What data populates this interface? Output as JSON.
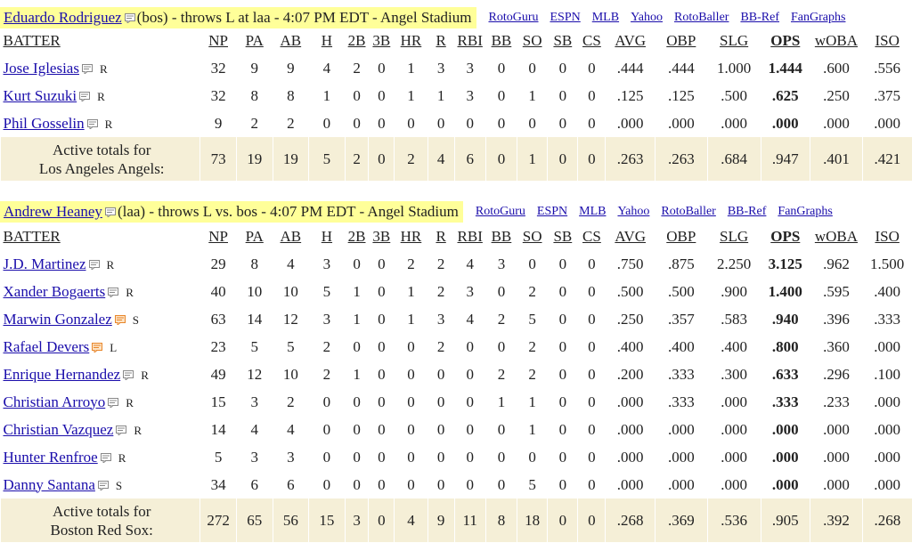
{
  "columns": [
    "BATTER",
    "NP",
    "PA",
    "AB",
    "H",
    "2B",
    "3B",
    "HR",
    "R",
    "RBI",
    "BB",
    "SO",
    "SB",
    "CS",
    "AVG",
    "OBP",
    "SLG",
    "OPS",
    "wOBA",
    "ISO"
  ],
  "links": [
    "RotoGuru",
    "ESPN",
    "MLB",
    "Yahoo",
    "RotoBaller",
    "BB-Ref",
    "FanGraphs"
  ],
  "game1": {
    "pitcher": "Eduardo Rodriguez",
    "info": "(bos) - throws L at laa - 4:07 PM EDT - Angel Stadium",
    "rows": [
      {
        "name": "Jose Iglesias",
        "hand": "R",
        "stats": [
          "32",
          "9",
          "9",
          "4",
          "2",
          "0",
          "1",
          "3",
          "3",
          "0",
          "0",
          "0",
          "0",
          ".444",
          ".444",
          "1.000",
          "1.444",
          ".600",
          ".556"
        ]
      },
      {
        "name": "Kurt Suzuki",
        "hand": "R",
        "stats": [
          "32",
          "8",
          "8",
          "1",
          "0",
          "0",
          "1",
          "1",
          "3",
          "0",
          "1",
          "0",
          "0",
          ".125",
          ".125",
          ".500",
          ".625",
          ".250",
          ".375"
        ]
      },
      {
        "name": "Phil Gosselin",
        "hand": "R",
        "stats": [
          "9",
          "2",
          "2",
          "0",
          "0",
          "0",
          "0",
          "0",
          "0",
          "0",
          "0",
          "0",
          "0",
          ".000",
          ".000",
          ".000",
          ".000",
          ".000",
          ".000"
        ]
      }
    ],
    "total_label_1": "Active totals for",
    "total_label_2": "Los Angeles Angels:",
    "totals": [
      "73",
      "19",
      "19",
      "5",
      "2",
      "0",
      "2",
      "4",
      "6",
      "0",
      "1",
      "0",
      "0",
      ".263",
      ".263",
      ".684",
      ".947",
      ".401",
      ".421"
    ]
  },
  "game2": {
    "pitcher": "Andrew Heaney",
    "info": "(laa) - throws L vs. bos - 4:07 PM EDT - Angel Stadium",
    "rows": [
      {
        "name": "J.D. Martinez",
        "hand": "R",
        "stats": [
          "29",
          "8",
          "4",
          "3",
          "0",
          "0",
          "2",
          "2",
          "4",
          "3",
          "0",
          "0",
          "0",
          ".750",
          ".875",
          "2.250",
          "3.125",
          ".962",
          "1.500"
        ]
      },
      {
        "name": "Xander Bogaerts",
        "hand": "R",
        "stats": [
          "40",
          "10",
          "10",
          "5",
          "1",
          "0",
          "1",
          "2",
          "3",
          "0",
          "2",
          "0",
          "0",
          ".500",
          ".500",
          ".900",
          "1.400",
          ".595",
          ".400"
        ]
      },
      {
        "name": "Marwin Gonzalez",
        "hand": "S",
        "stats": [
          "63",
          "14",
          "12",
          "3",
          "1",
          "0",
          "1",
          "3",
          "4",
          "2",
          "5",
          "0",
          "0",
          ".250",
          ".357",
          ".583",
          ".940",
          ".396",
          ".333"
        ]
      },
      {
        "name": "Rafael Devers",
        "hand": "L",
        "stats": [
          "23",
          "5",
          "5",
          "2",
          "0",
          "0",
          "0",
          "2",
          "0",
          "0",
          "2",
          "0",
          "0",
          ".400",
          ".400",
          ".400",
          ".800",
          ".360",
          ".000"
        ]
      },
      {
        "name": "Enrique Hernandez",
        "hand": "R",
        "stats": [
          "49",
          "12",
          "10",
          "2",
          "1",
          "0",
          "0",
          "0",
          "0",
          "2",
          "2",
          "0",
          "0",
          ".200",
          ".333",
          ".300",
          ".633",
          ".296",
          ".100"
        ]
      },
      {
        "name": "Christian Arroyo",
        "hand": "R",
        "stats": [
          "15",
          "3",
          "2",
          "0",
          "0",
          "0",
          "0",
          "0",
          "0",
          "1",
          "1",
          "0",
          "0",
          ".000",
          ".333",
          ".000",
          ".333",
          ".233",
          ".000"
        ]
      },
      {
        "name": "Christian Vazquez",
        "hand": "R",
        "stats": [
          "14",
          "4",
          "4",
          "0",
          "0",
          "0",
          "0",
          "0",
          "0",
          "0",
          "1",
          "0",
          "0",
          ".000",
          ".000",
          ".000",
          ".000",
          ".000",
          ".000"
        ]
      },
      {
        "name": "Hunter Renfroe",
        "hand": "R",
        "stats": [
          "5",
          "3",
          "3",
          "0",
          "0",
          "0",
          "0",
          "0",
          "0",
          "0",
          "0",
          "0",
          "0",
          ".000",
          ".000",
          ".000",
          ".000",
          ".000",
          ".000"
        ]
      },
      {
        "name": "Danny Santana",
        "hand": "S",
        "stats": [
          "34",
          "6",
          "6",
          "0",
          "0",
          "0",
          "0",
          "0",
          "0",
          "0",
          "5",
          "0",
          "0",
          ".000",
          ".000",
          ".000",
          ".000",
          ".000",
          ".000"
        ]
      }
    ],
    "total_label_1": "Active totals for",
    "total_label_2": "Boston Red Sox:",
    "totals": [
      "272",
      "65",
      "56",
      "15",
      "3",
      "0",
      "4",
      "9",
      "11",
      "8",
      "18",
      "0",
      "0",
      ".268",
      ".369",
      ".536",
      ".905",
      ".392",
      ".268"
    ]
  },
  "colors": {
    "header_highlight": "#ffff99",
    "totals_bg": "#f5efd7",
    "link": "#1a0dab",
    "note_orange": "#e8862a"
  }
}
